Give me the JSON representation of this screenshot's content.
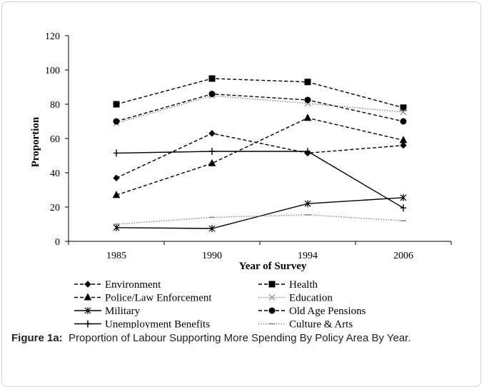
{
  "chart_data": {
    "type": "line",
    "xlabel": "Year of Survey",
    "ylabel": "Proportion",
    "ylim": [
      0,
      120
    ],
    "yticks": [
      0,
      20,
      40,
      60,
      80,
      100,
      120
    ],
    "categories": [
      "1985",
      "1990",
      "1994",
      "2006"
    ],
    "grid": false,
    "legend_position": "bottom",
    "series": [
      {
        "name": "Environment",
        "values": [
          37,
          63,
          51.5,
          56
        ],
        "marker": "diamond",
        "line": "dashed",
        "color": "#000000"
      },
      {
        "name": "Health",
        "values": [
          80,
          95,
          93,
          78
        ],
        "marker": "square",
        "line": "dashed",
        "color": "#000000"
      },
      {
        "name": "Police/Law Enforcement",
        "values": [
          27,
          45.5,
          72,
          59
        ],
        "marker": "triangle",
        "line": "dashed",
        "color": "#000000"
      },
      {
        "name": "Education",
        "values": [
          69,
          85,
          80.5,
          75.5
        ],
        "marker": "x",
        "line": "dotted",
        "color": "#8a8a8a"
      },
      {
        "name": "Military",
        "values": [
          8,
          7.5,
          22,
          25.5
        ],
        "marker": "asterisk",
        "line": "solid",
        "color": "#000000"
      },
      {
        "name": "Old Age Pensions",
        "values": [
          70,
          86,
          82.5,
          70
        ],
        "marker": "circle",
        "line": "dashed",
        "color": "#000000"
      },
      {
        "name": "Unemployment Benefits",
        "values": [
          51.5,
          52.5,
          52.5,
          19.5
        ],
        "marker": "plus",
        "line": "solid",
        "color": "#000000"
      },
      {
        "name": "Culture & Arts",
        "values": [
          10,
          14,
          15.5,
          12
        ],
        "marker": "dash",
        "line": "dotted",
        "color": "#8a8a8a"
      }
    ]
  },
  "caption": {
    "label": "Figure 1a:",
    "text": "Proportion of Labour Supporting More Spending By Policy Area By Year."
  }
}
